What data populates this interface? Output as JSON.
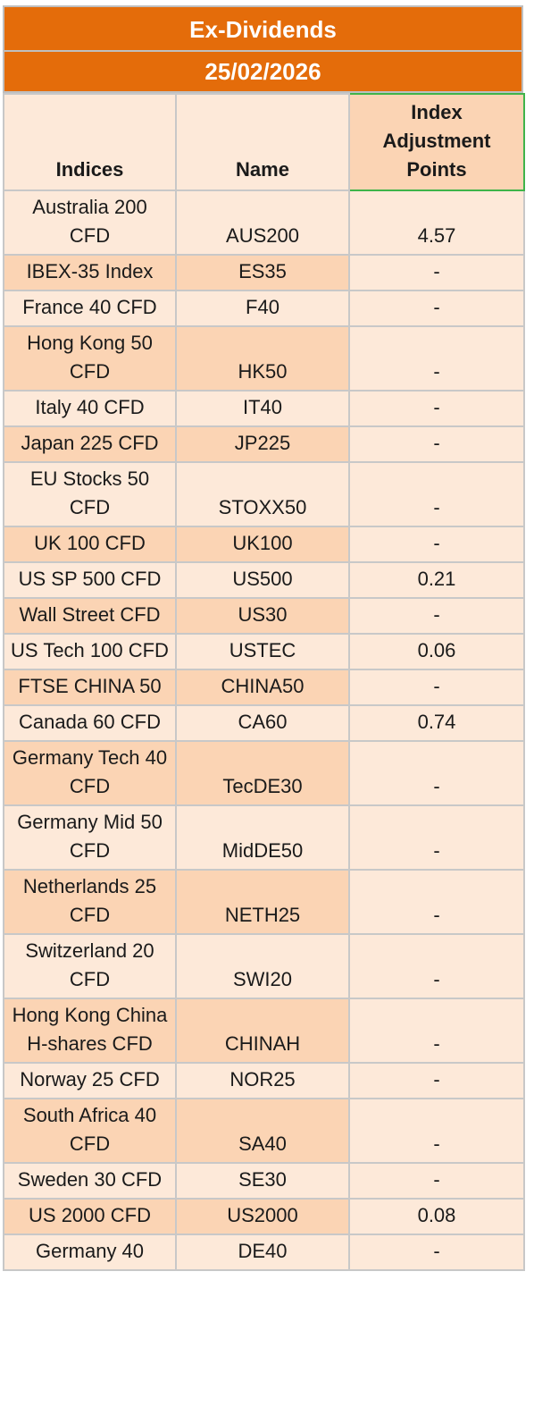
{
  "header": {
    "title": "Ex-Dividends",
    "date": "25/02/2026"
  },
  "columns": {
    "indices": "Indices",
    "name": "Name",
    "adjustment": "Index Adjustment Points"
  },
  "rows": [
    {
      "index": "Australia 200 CFD",
      "name": "AUS200",
      "points": "4.57",
      "name_shade": "light"
    },
    {
      "index": "IBEX-35 Index",
      "name": "ES35",
      "points": "-",
      "name_shade": "dark"
    },
    {
      "index": "France 40 CFD",
      "name": "F40",
      "points": "-",
      "name_shade": "light"
    },
    {
      "index": "Hong Kong 50 CFD",
      "name": "HK50",
      "points": "-",
      "name_shade": "dark"
    },
    {
      "index": "Italy 40 CFD",
      "name": "IT40",
      "points": "-",
      "name_shade": "light"
    },
    {
      "index": "Japan 225 CFD",
      "name": "JP225",
      "points": "-",
      "name_shade": "dark"
    },
    {
      "index": "EU Stocks 50 CFD",
      "name": "STOXX50",
      "points": "-",
      "name_shade": "light"
    },
    {
      "index": "UK 100 CFD",
      "name": "UK100",
      "points": "-",
      "name_shade": "dark"
    },
    {
      "index": "US SP 500 CFD",
      "name": "US500",
      "points": "0.21",
      "name_shade": "light"
    },
    {
      "index": "Wall Street CFD",
      "name": "US30",
      "points": "-",
      "name_shade": "dark"
    },
    {
      "index": "US Tech 100 CFD",
      "name": "USTEC",
      "points": "0.06",
      "name_shade": "light"
    },
    {
      "index": "FTSE CHINA 50",
      "name": "CHINA50",
      "points": "-",
      "name_shade": "dark"
    },
    {
      "index": "Canada 60 CFD",
      "name": "CA60",
      "points": "0.74",
      "name_shade": "light"
    },
    {
      "index": "Germany Tech 40 CFD",
      "name": "TecDE30",
      "points": "-",
      "name_shade": "dark"
    },
    {
      "index": "Germany Mid 50 CFD",
      "name": "MidDE50",
      "points": "-",
      "name_shade": "light"
    },
    {
      "index": "Netherlands 25 CFD",
      "name": "NETH25",
      "points": "-",
      "name_shade": "dark"
    },
    {
      "index": "Switzerland 20 CFD",
      "name": "SWI20",
      "points": "-",
      "name_shade": "light"
    },
    {
      "index": "Hong Kong China H-shares CFD",
      "name": "CHINAH",
      "points": "-",
      "name_shade": "dark"
    },
    {
      "index": "Norway 25 CFD",
      "name": "NOR25",
      "points": "-",
      "name_shade": "light"
    },
    {
      "index": "South Africa 40 CFD",
      "name": "SA40",
      "points": "-",
      "name_shade": "dark"
    },
    {
      "index": "Sweden 30 CFD",
      "name": "SE30",
      "points": "-",
      "name_shade": "light"
    },
    {
      "index": "US 2000 CFD",
      "name": "US2000",
      "points": "0.08",
      "name_shade": "dark"
    },
    {
      "index": "Germany 40",
      "name": "DE40",
      "points": "-",
      "name_shade": "light"
    }
  ],
  "colors": {
    "banner": "#E46C0A",
    "light_cell": "#FDE9D9",
    "dark_cell": "#FBD4B4",
    "header_highlight": "#3FB44A"
  }
}
